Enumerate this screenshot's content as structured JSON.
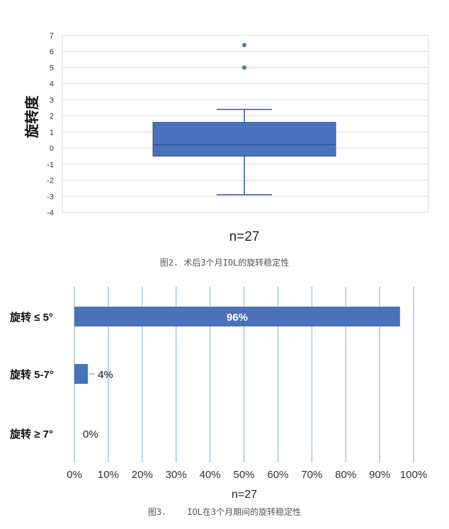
{
  "chart_data": [
    {
      "type": "box",
      "ylabel": "旋转度",
      "xlabel": "n=27",
      "ylim": [
        -4,
        7
      ],
      "yticks": [
        -4,
        -3,
        -2,
        -1,
        0,
        1,
        2,
        3,
        4,
        5,
        6,
        7
      ],
      "grid": true,
      "box": {
        "whisker_low": -2.9,
        "q1": -0.5,
        "median": 0.2,
        "q3": 1.6,
        "whisker_high": 2.4
      },
      "outliers": [
        5.0,
        6.4
      ]
    },
    {
      "type": "bar",
      "orientation": "horizontal",
      "xlabel": "n=27",
      "categories": [
        "旋转 ≤ 5°",
        "旋转 5-7°",
        "旋转 ≥ 7°"
      ],
      "values": [
        96,
        4,
        0
      ],
      "value_labels": [
        "96%",
        "4%",
        "0%"
      ],
      "xlim": [
        0,
        100
      ],
      "xticks": [
        "0%",
        "10%",
        "20%",
        "30%",
        "40%",
        "50%",
        "60%",
        "70%",
        "80%",
        "90%",
        "100%"
      ],
      "grid": true
    }
  ],
  "captions": {
    "fig2": "图2. 术后3个月IOL的旋转稳定性",
    "fig3": "图3.    IOL在3个月期间的旋转稳定性"
  },
  "colors": {
    "box_fill": "#4a72bb",
    "box_edge": "#2f5597",
    "bar_fill": "#4a72bb",
    "grid_box": "#d9d9d9",
    "grid_bar": "#bdd3e6"
  }
}
